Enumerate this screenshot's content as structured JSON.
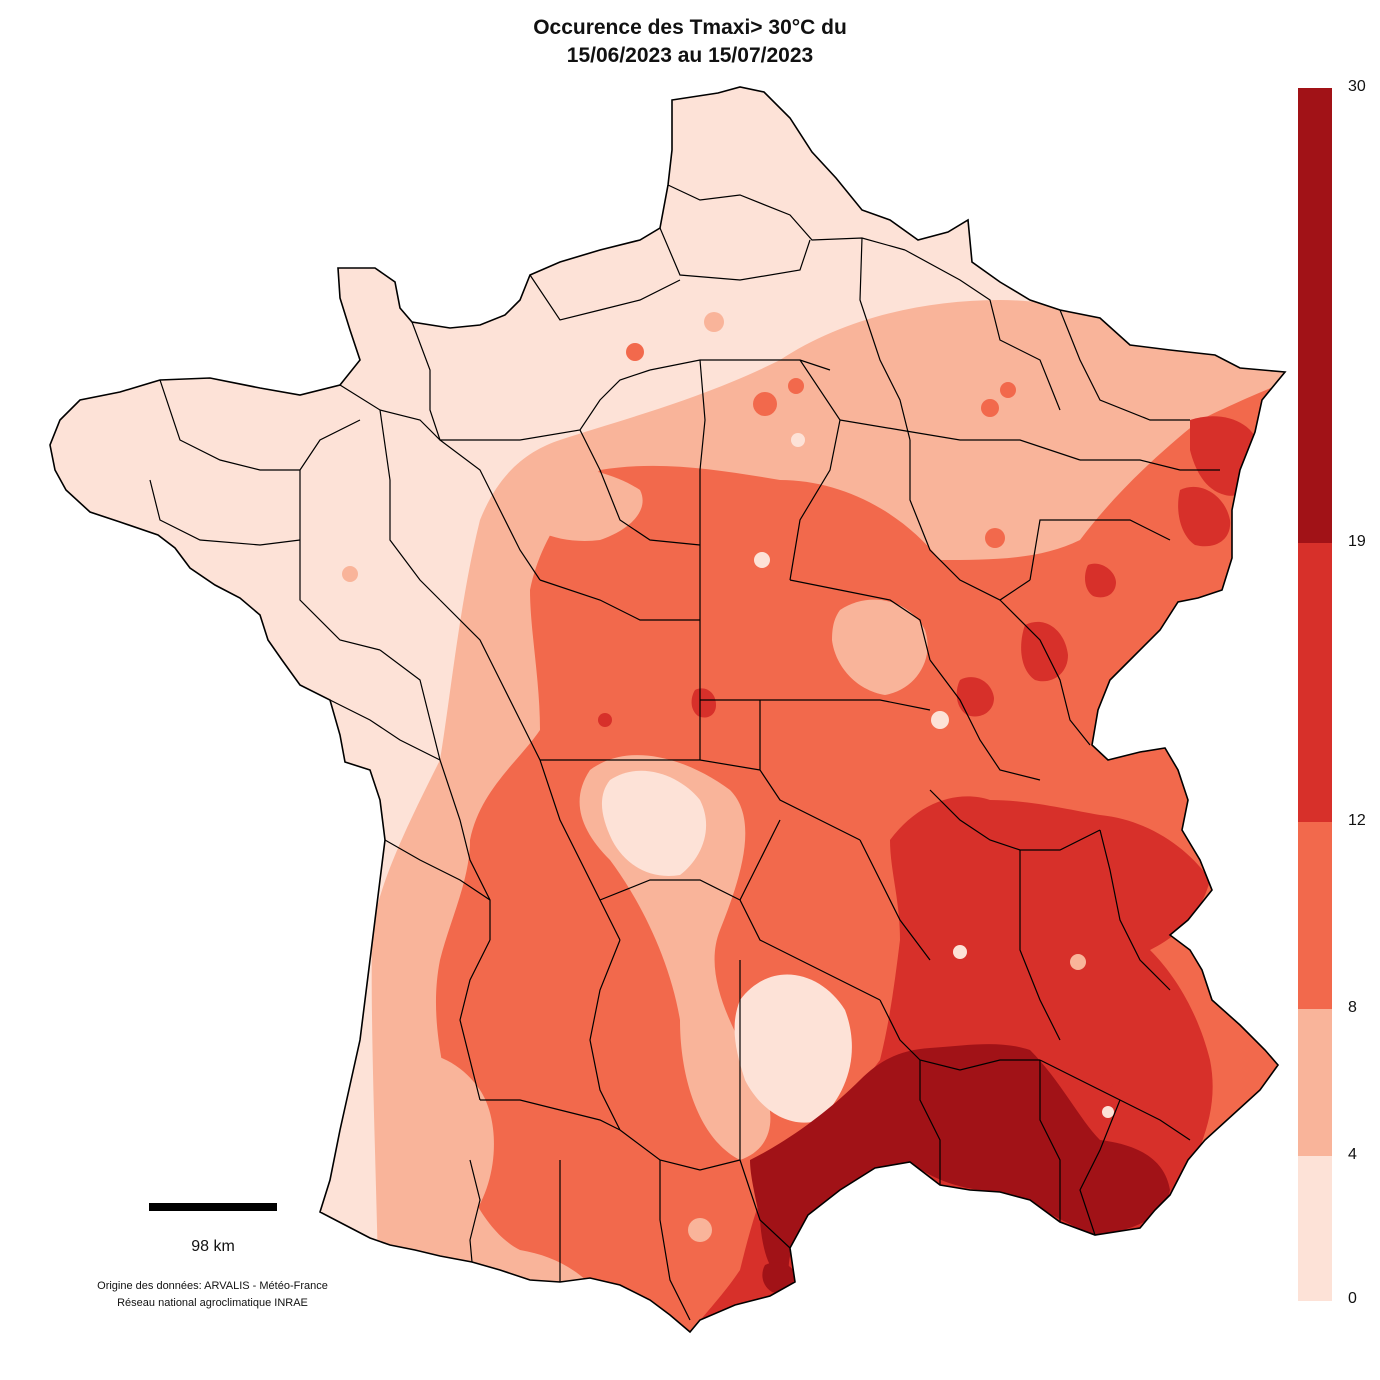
{
  "title": {
    "line1": "Occurence des Tmaxi> 30°C du",
    "line2": "15/06/2023 au 15/07/2023"
  },
  "legend": {
    "labels": [
      "30",
      "19",
      "12",
      "8",
      "4",
      "0"
    ],
    "classes": [
      {
        "from": 0,
        "to": 4,
        "color": "#fde2d7"
      },
      {
        "from": 4,
        "to": 8,
        "color": "#f9b49a"
      },
      {
        "from": 8,
        "to": 12,
        "color": "#f2694c"
      },
      {
        "from": 12,
        "to": 19,
        "color": "#d7302a"
      },
      {
        "from": 19,
        "to": 30,
        "color": "#a11217"
      }
    ]
  },
  "scale": {
    "label": "98 km"
  },
  "source": {
    "line1": "Origine des données: ARVALIS - Météo-France",
    "line2": "Réseau national agroclimatique INRAE"
  },
  "colors": {
    "outline": "#000000",
    "background": "#ffffff"
  }
}
